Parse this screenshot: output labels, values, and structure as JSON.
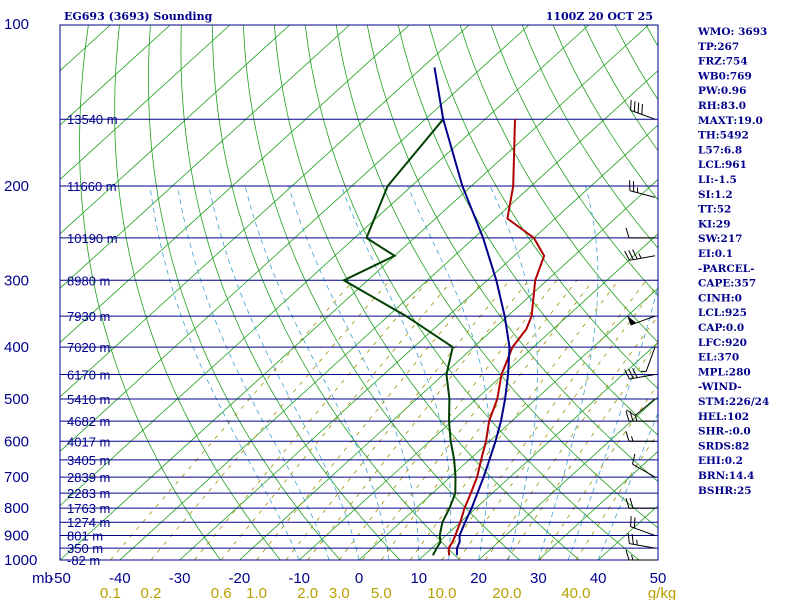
{
  "header": {
    "station_title": "EG693 (3693) Sounding",
    "valid_time": "1100Z 20 OCT 25"
  },
  "chart_data": {
    "type": "skew-t log-p sounding",
    "pressure_axis_label": "mb",
    "pressure_ticks": [
      "100",
      "200",
      "300",
      "400",
      "500",
      "600",
      "700",
      "800",
      "900",
      "1000"
    ],
    "pressure_levels": [
      100,
      200,
      300,
      400,
      500,
      600,
      700,
      800,
      900,
      1000
    ],
    "temperature_ticks": [
      "-50",
      "-40",
      "-30",
      "-20",
      "-10",
      "0",
      "10",
      "20",
      "30",
      "40",
      "50"
    ],
    "mixing_ratio_labels": [
      "0.1",
      "0.2",
      "0.6",
      "1.0",
      "2.0",
      "3.0",
      "5.0",
      "10.0",
      "20.0",
      "40.0"
    ],
    "mixing_ratio_values": [
      0.1,
      0.2,
      0.6,
      1.0,
      2.0,
      3.0,
      5.0,
      10.0,
      20.0,
      40.0
    ],
    "mixing_ratio_unit": "g/kg",
    "height_levels": [
      {
        "p": 150,
        "label": "13540 m"
      },
      {
        "p": 200,
        "label": "11660 m"
      },
      {
        "p": 250,
        "label": "10190 m"
      },
      {
        "p": 300,
        "label": "8980 m"
      },
      {
        "p": 350,
        "label": "7930 m"
      },
      {
        "p": 400,
        "label": "7020 m"
      },
      {
        "p": 450,
        "label": "6170 m"
      },
      {
        "p": 500,
        "label": "5410 m"
      },
      {
        "p": 550,
        "label": "4682 m"
      },
      {
        "p": 600,
        "label": "4017 m"
      },
      {
        "p": 650,
        "label": "3405 m"
      },
      {
        "p": 700,
        "label": "2839 m"
      },
      {
        "p": 750,
        "label": "2283 m"
      },
      {
        "p": 800,
        "label": "1763 m"
      },
      {
        "p": 850,
        "label": "1274 m"
      },
      {
        "p": 900,
        "label": "801 m"
      },
      {
        "p": 950,
        "label": "350 m"
      },
      {
        "p": 1000,
        "label": "-82 m"
      }
    ],
    "series": [
      {
        "name": "temperature",
        "color": "#b00000",
        "points": [
          [
            980,
            14.2
          ],
          [
            950,
            12.8
          ],
          [
            925,
            12.3
          ],
          [
            900,
            11.6
          ],
          [
            850,
            10.0
          ],
          [
            800,
            8.1
          ],
          [
            750,
            6.4
          ],
          [
            700,
            4.5
          ],
          [
            650,
            2.0
          ],
          [
            600,
            -0.6
          ],
          [
            550,
            -3.8
          ],
          [
            500,
            -6.5
          ],
          [
            450,
            -10.3
          ],
          [
            400,
            -13.5
          ],
          [
            370,
            -14.5
          ],
          [
            350,
            -16.0
          ],
          [
            300,
            -22.0
          ],
          [
            270,
            -25.0
          ],
          [
            250,
            -30.0
          ],
          [
            230,
            -38.0
          ],
          [
            200,
            -43.0
          ],
          [
            150,
            -55.0
          ]
        ]
      },
      {
        "name": "dewpoint",
        "color": "#004000",
        "points": [
          [
            980,
            11.5
          ],
          [
            950,
            10.8
          ],
          [
            925,
            10.3
          ],
          [
            900,
            9.0
          ],
          [
            850,
            7.0
          ],
          [
            800,
            5.6
          ],
          [
            750,
            3.8
          ],
          [
            700,
            0.9
          ],
          [
            650,
            -2.5
          ],
          [
            600,
            -6.5
          ],
          [
            550,
            -10.5
          ],
          [
            500,
            -14.5
          ],
          [
            450,
            -19.5
          ],
          [
            400,
            -23.5
          ],
          [
            350,
            -37.0
          ],
          [
            300,
            -54.0
          ],
          [
            270,
            -50.0
          ],
          [
            250,
            -58.0
          ],
          [
            200,
            -64.0
          ],
          [
            150,
            -67.0
          ]
        ]
      },
      {
        "name": "parcel",
        "color": "#00008b",
        "points": [
          [
            980,
            15.5
          ],
          [
            950,
            14.2
          ],
          [
            925,
            13.5
          ],
          [
            900,
            12.3
          ],
          [
            850,
            10.8
          ],
          [
            800,
            9.3
          ],
          [
            750,
            7.5
          ],
          [
            700,
            5.6
          ],
          [
            650,
            3.4
          ],
          [
            600,
            1.0
          ],
          [
            550,
            -1.8
          ],
          [
            500,
            -5.2
          ],
          [
            450,
            -9.2
          ],
          [
            400,
            -14.0
          ],
          [
            350,
            -20.5
          ],
          [
            300,
            -28.5
          ],
          [
            250,
            -38.5
          ],
          [
            200,
            -51.5
          ],
          [
            150,
            -67.0
          ],
          [
            120,
            -78.0
          ]
        ]
      }
    ],
    "wind_barbs": [
      {
        "p": 150,
        "dir": 290,
        "spd": 40
      },
      {
        "p": 210,
        "dir": 285,
        "spd": 25
      },
      {
        "p": 250,
        "dir": 270,
        "spd": 10
      },
      {
        "p": 270,
        "dir": 260,
        "spd": 35
      },
      {
        "p": 350,
        "dir": 250,
        "spd": 50
      },
      {
        "p": 400,
        "dir": 200,
        "spd": 5
      },
      {
        "p": 450,
        "dir": 260,
        "spd": 30
      },
      {
        "p": 500,
        "dir": 230,
        "spd": 10
      },
      {
        "p": 550,
        "dir": 270,
        "spd": 25
      },
      {
        "p": 600,
        "dir": 270,
        "spd": 15
      },
      {
        "p": 700,
        "dir": 300,
        "spd": 10
      },
      {
        "p": 800,
        "dir": 270,
        "spd": 20
      },
      {
        "p": 900,
        "dir": 290,
        "spd": 20
      },
      {
        "p": 950,
        "dir": 280,
        "spd": 25
      },
      {
        "p": 1000,
        "dir": 270,
        "spd": 15
      }
    ]
  },
  "indices": [
    "WMO: 3693",
    "TP:267",
    "FRZ:754",
    "WB0:769",
    "PW:0.96",
    "RH:83.0",
    "MAXT:19.0",
    "TH:5492",
    "L57:6.8",
    "LCL:961",
    "LI:-1.5",
    "SI:1.2",
    "TT:52",
    "KI:29",
    "SW:217",
    "EI:0.1",
    "-PARCEL-",
    "CAPE:357",
    "CINH:0",
    "LCL:925",
    "CAP:0.0",
    "LFC:920",
    "EL:370",
    "MPL:280",
    "-WIND-",
    "STM:226/24",
    "HEL:102",
    "SHR-:0.0",
    "SRDS:82",
    "EHI:0.2",
    "BRN:14.4",
    "BSHR:25"
  ],
  "colors": {
    "isobar": "#00008b",
    "isotherm": "#20a020",
    "dry_adiabat": "#20a020",
    "moist_adiabat": "#40a0d0",
    "mixing_ratio": "#a09000",
    "text": "#00008b",
    "mix_text": "#b8a000"
  }
}
